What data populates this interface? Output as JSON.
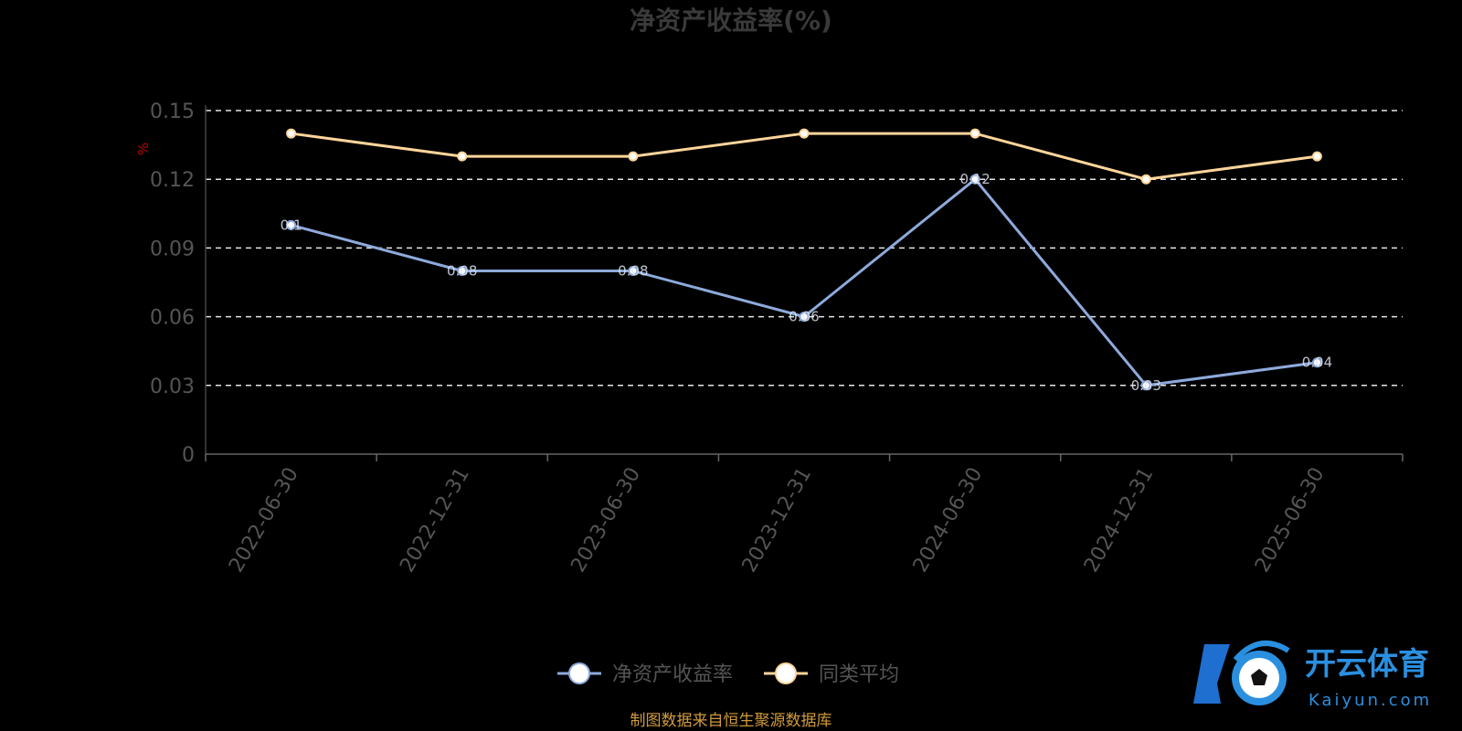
{
  "chart_data": {
    "type": "line",
    "title": "净资产收益率(%)",
    "ylabel": "%",
    "xlabel": "",
    "categories": [
      "2022-06-30",
      "2022-12-31",
      "2023-06-30",
      "2023-12-31",
      "2024-06-30",
      "2024-12-31",
      "2025-06-30"
    ],
    "ylim": [
      0,
      0.15
    ],
    "yticks": [
      "0",
      "0.03",
      "0.06",
      "0.09",
      "0.12",
      "0.15"
    ],
    "grid": true,
    "legend_position": "bottom-center",
    "series": [
      {
        "name": "净资产收益率",
        "color": "#8eaadb",
        "values": [
          0.1,
          0.08,
          0.08,
          0.06,
          0.12,
          0.03,
          0.04
        ]
      },
      {
        "name": "同类平均",
        "color": "#ffd59a",
        "values": [
          0.14,
          0.13,
          0.13,
          0.14,
          0.14,
          0.12,
          0.13
        ]
      }
    ]
  },
  "source_text": "制图数据来自恒生聚源数据库",
  "watermark": {
    "brand_cn": "开云体育",
    "brand_en": "Kaiyun.com",
    "icon": "soccer-ball-logo-icon"
  }
}
